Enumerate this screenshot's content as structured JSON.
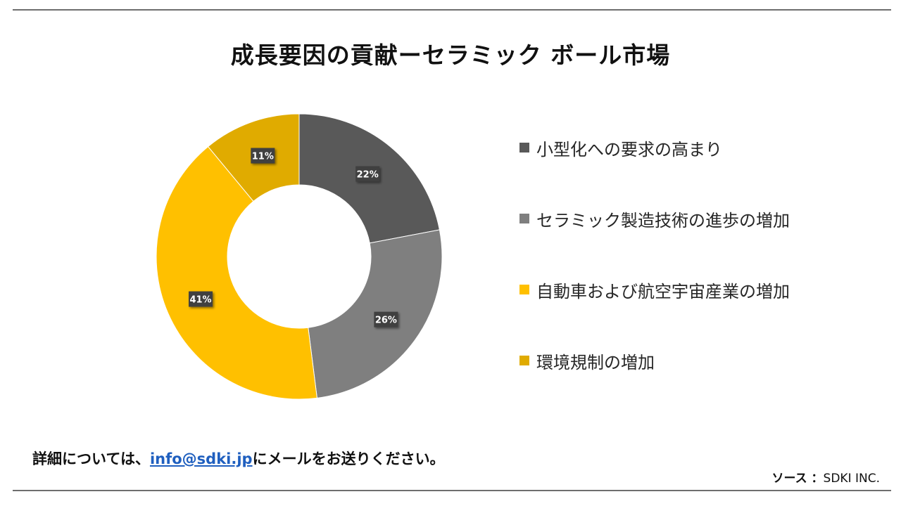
{
  "title": "成長要因の貢献ーセラミック ボール市場",
  "footer": {
    "prefix": "詳細については、",
    "email": "info@sdki.jp",
    "suffix": "にメールをお送りください。"
  },
  "source": {
    "label": "ソース ：",
    "value": "SDKI INC."
  },
  "chart_data": {
    "type": "pie",
    "variant": "donut",
    "title": "成長要因の貢献ーセラミック ボール市場",
    "legend_position": "right",
    "slices": [
      {
        "label": "小型化への要求の高まり",
        "value": 22,
        "display": "22%",
        "color": "#595959"
      },
      {
        "label": "セラミック製造技術の進歩の増加",
        "value": 26,
        "display": "26%",
        "color": "#7f7f7f"
      },
      {
        "label": "自動車および航空宇宙産業の増加",
        "value": 41,
        "display": "41%",
        "color": "#ffc000"
      },
      {
        "label": "環境規制の増加",
        "value": 11,
        "display": "11%",
        "color": "#e0ab00"
      }
    ]
  }
}
